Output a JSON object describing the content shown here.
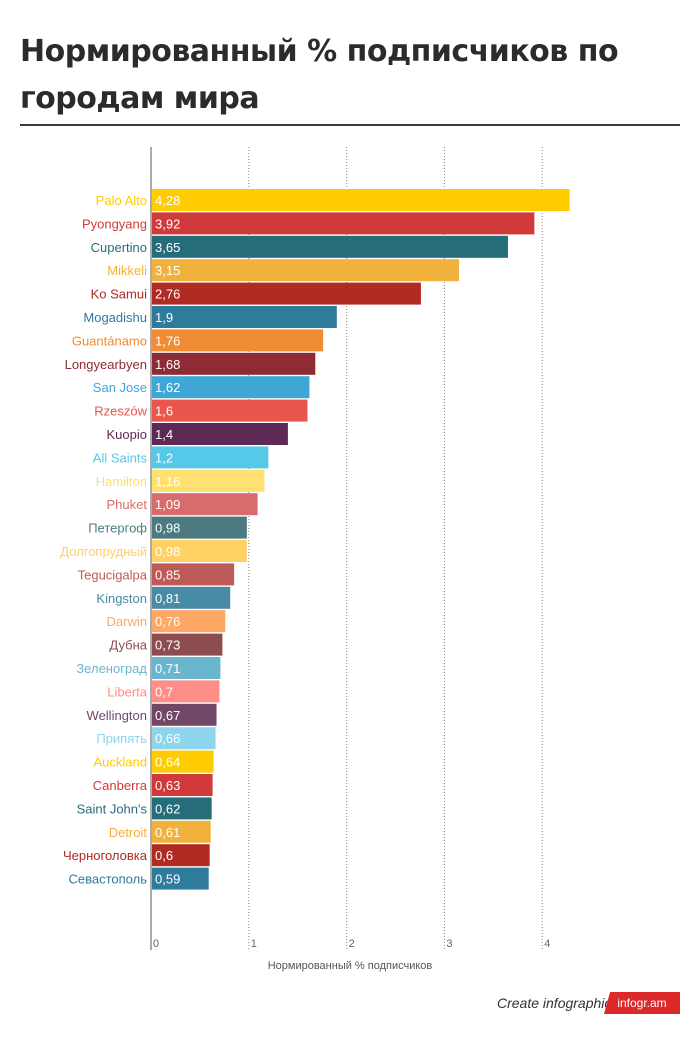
{
  "page": {
    "title": "Нормированный % подписчиков по городам мира",
    "footer_text": "Create infographics",
    "brand": "infogr.am"
  },
  "chart_data": {
    "type": "bar",
    "orientation": "horizontal",
    "title": "Нормированный % подписчиков по городам мира",
    "xlabel": "Нормированный % подписчиков",
    "ylabel": "",
    "xlim": [
      0,
      4.4
    ],
    "xticks": [
      0,
      1,
      2,
      3,
      4
    ],
    "grid": true,
    "categories": [
      "Palo Alto",
      "Pyongyang",
      "Cupertino",
      "Mikkeli",
      "Ko Samui",
      "Mogadishu",
      "Guantánamo",
      "Longyearbyen",
      "San Jose",
      "Rzeszów",
      "Kuopio",
      "All Saints",
      "Hamilton",
      "Phuket",
      "Петергоф",
      "Долгопрудный",
      "Tegucigalpa",
      "Kingston",
      "Darwin",
      "Дубна",
      "Зеленоград",
      "Liberta",
      "Wellington",
      "Припять",
      "Auckland",
      "Canberra",
      "Saint John's",
      "Detroit",
      "Черноголовка",
      "Севастополь"
    ],
    "values": [
      4.28,
      3.92,
      3.65,
      3.15,
      2.76,
      1.9,
      1.76,
      1.68,
      1.62,
      1.6,
      1.4,
      1.2,
      1.16,
      1.09,
      0.98,
      0.98,
      0.85,
      0.81,
      0.76,
      0.73,
      0.71,
      0.7,
      0.67,
      0.66,
      0.64,
      0.63,
      0.62,
      0.61,
      0.6,
      0.59
    ],
    "value_labels": [
      "4,28",
      "3,92",
      "3,65",
      "3,15",
      "2,76",
      "1,9",
      "1,76",
      "1,68",
      "1,62",
      "1,6",
      "1,4",
      "1,2",
      "1,16",
      "1,09",
      "0,98",
      "0,98",
      "0,85",
      "0,81",
      "0,76",
      "0,73",
      "0,71",
      "0,7",
      "0,67",
      "0,66",
      "0,64",
      "0,63",
      "0,62",
      "0,61",
      "0,6",
      "0,59"
    ],
    "colors": [
      "#ffcc00",
      "#d13a3a",
      "#266d7a",
      "#f0b23c",
      "#b02b22",
      "#2e7b9b",
      "#f08c33",
      "#8e2b35",
      "#3fa7d6",
      "#e8564c",
      "#5e2a55",
      "#56c8e8",
      "#ffe070",
      "#d86c6c",
      "#4c7a80",
      "#ffd064",
      "#bd5a58",
      "#488ba6",
      "#ffa764",
      "#8d4c50",
      "#6bb6cf",
      "#ff8d88",
      "#704766",
      "#8cd5ed",
      "#ffcc00",
      "#d13a3a",
      "#266d7a",
      "#f0b23c",
      "#b02b22",
      "#2e7b9b"
    ]
  }
}
